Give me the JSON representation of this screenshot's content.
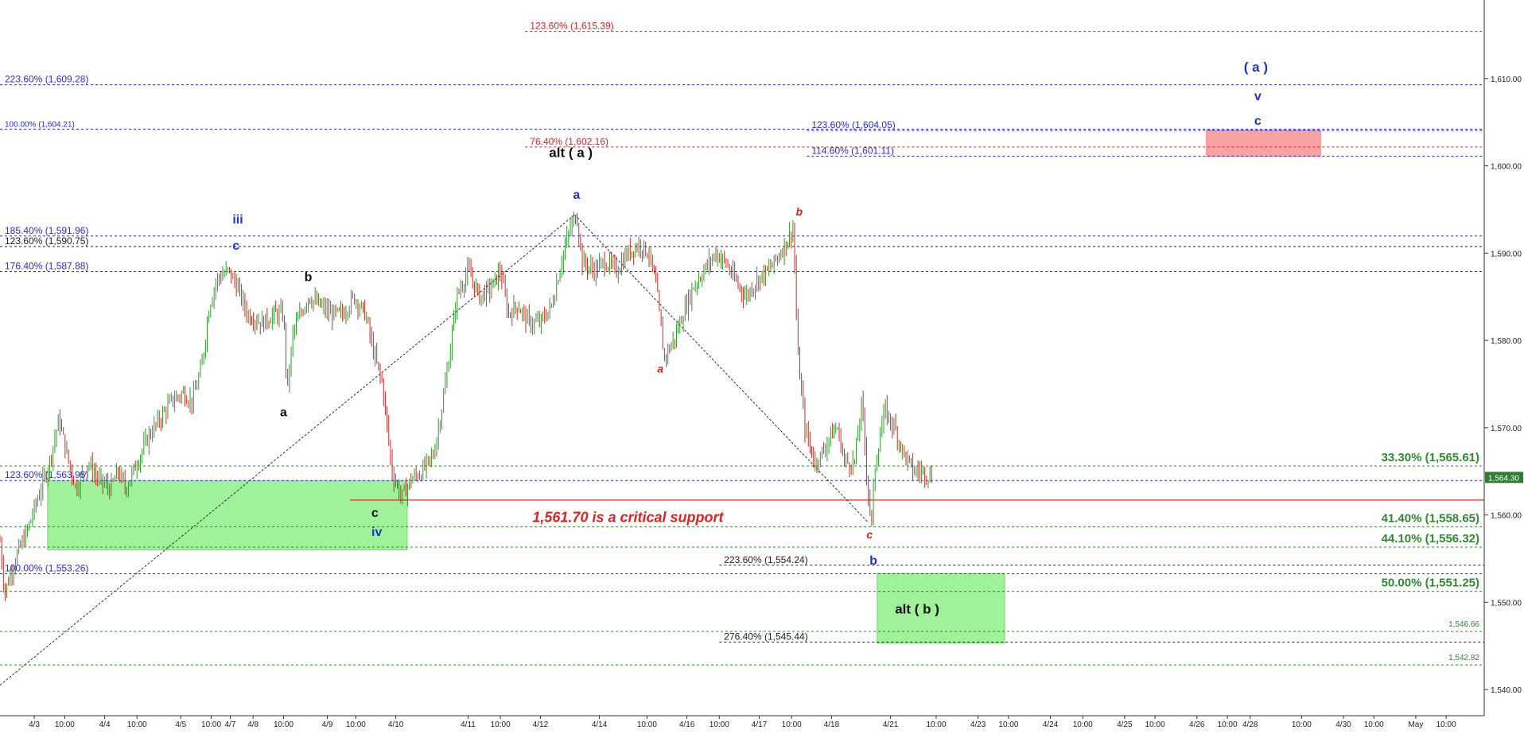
{
  "chart_data": {
    "type": "line",
    "subtype": "candlestick-elliott-wave",
    "y_axis": {
      "side": "right",
      "ylim": [
        1537,
        1619
      ],
      "ticks": [
        "1,540.00",
        "1,550.00",
        "1,560.00",
        "1,570.00",
        "1,580.00",
        "1,590.00",
        "1,600.00",
        "1,610.00"
      ],
      "tick_values": [
        1540,
        1550,
        1560,
        1570,
        1580,
        1590,
        1600,
        1610
      ],
      "last_price": "1,564.30",
      "last_price_value": 1564.3
    },
    "x_axis": {
      "slot_count": 39,
      "ticks": [
        {
          "label": "4/3",
          "slot": 0.9
        },
        {
          "label": "10:00",
          "slot": 1.7
        },
        {
          "label": "4/4",
          "slot": 2.75
        },
        {
          "label": "10:00",
          "slot": 3.6
        },
        {
          "label": "4/5",
          "slot": 4.75
        },
        {
          "label": "10:00",
          "slot": 5.55
        },
        {
          "label": "4/7",
          "slot": 6.05
        },
        {
          "label": "4/8",
          "slot": 6.65
        },
        {
          "label": "10:00",
          "slot": 7.45
        },
        {
          "label": "4/9",
          "slot": 8.6
        },
        {
          "label": "10:00",
          "slot": 9.35
        },
        {
          "label": "4/10",
          "slot": 10.4
        },
        {
          "label": "4/11",
          "slot": 12.3
        },
        {
          "label": "10:00",
          "slot": 13.15
        },
        {
          "label": "4/12",
          "slot": 14.2
        },
        {
          "label": "4/14",
          "slot": 15.75
        },
        {
          "label": "10:00",
          "slot": 17.0
        },
        {
          "label": "4/16",
          "slot": 18.05
        },
        {
          "label": "10:00",
          "slot": 18.9
        },
        {
          "label": "4/17",
          "slot": 19.95
        },
        {
          "label": "10:00",
          "slot": 20.8
        },
        {
          "label": "4/18",
          "slot": 21.85
        },
        {
          "label": "4/21",
          "slot": 23.4
        },
        {
          "label": "10:00",
          "slot": 24.6
        },
        {
          "label": "4/23",
          "slot": 25.7
        },
        {
          "label": "10:00",
          "slot": 26.5
        },
        {
          "label": "4/24",
          "slot": 27.6
        },
        {
          "label": "10:00",
          "slot": 28.45
        },
        {
          "label": "4/25",
          "slot": 29.55
        },
        {
          "label": "10:00",
          "slot": 30.35
        },
        {
          "label": "4/26",
          "slot": 31.45
        },
        {
          "label": "10:00",
          "slot": 32.25
        },
        {
          "label": "4/28",
          "slot": 32.85
        },
        {
          "label": "10:00",
          "slot": 34.2
        },
        {
          "label": "4/30",
          "slot": 35.3
        },
        {
          "label": "10:00",
          "slot": 36.1
        },
        {
          "label": "May",
          "slot": 37.2
        },
        {
          "label": "10:00",
          "slot": 38.0
        }
      ]
    },
    "price_path": [
      [
        0,
        1557
      ],
      [
        0.12,
        1551
      ],
      [
        0.4,
        1555
      ],
      [
        0.7,
        1558
      ],
      [
        1.0,
        1562
      ],
      [
        1.3,
        1566
      ],
      [
        1.55,
        1571
      ],
      [
        1.75,
        1567
      ],
      [
        2.0,
        1563
      ],
      [
        2.3,
        1566
      ],
      [
        2.6,
        1564
      ],
      [
        2.9,
        1563
      ],
      [
        3.1,
        1565
      ],
      [
        3.3,
        1563
      ],
      [
        3.6,
        1566
      ],
      [
        3.9,
        1569
      ],
      [
        4.2,
        1571
      ],
      [
        4.5,
        1573
      ],
      [
        4.8,
        1574
      ],
      [
        5.05,
        1573
      ],
      [
        5.3,
        1577
      ],
      [
        5.5,
        1584
      ],
      [
        5.7,
        1587
      ],
      [
        6.0,
        1588
      ],
      [
        6.25,
        1586
      ],
      [
        6.5,
        1583
      ],
      [
        6.9,
        1582
      ],
      [
        7.2,
        1583
      ],
      [
        7.45,
        1583
      ],
      [
        7.55,
        1574
      ],
      [
        7.7,
        1581
      ],
      [
        7.9,
        1583
      ],
      [
        8.1,
        1585
      ],
      [
        8.4,
        1584
      ],
      [
        8.7,
        1583
      ],
      [
        9.0,
        1583
      ],
      [
        9.3,
        1585
      ],
      [
        9.6,
        1583
      ],
      [
        9.85,
        1578
      ],
      [
        10.05,
        1575
      ],
      [
        10.3,
        1565
      ],
      [
        10.55,
        1562
      ],
      [
        10.8,
        1564
      ],
      [
        11.1,
        1565
      ],
      [
        11.4,
        1567
      ],
      [
        11.6,
        1572
      ],
      [
        11.8,
        1578
      ],
      [
        12.0,
        1585
      ],
      [
        12.3,
        1588
      ],
      [
        12.6,
        1585
      ],
      [
        12.9,
        1586
      ],
      [
        13.15,
        1588
      ],
      [
        13.35,
        1583
      ],
      [
        13.6,
        1584
      ],
      [
        13.9,
        1582
      ],
      [
        14.2,
        1582
      ],
      [
        14.5,
        1584
      ],
      [
        14.8,
        1590
      ],
      [
        15.0,
        1593
      ],
      [
        15.15,
        1594.5
      ],
      [
        15.3,
        1589
      ],
      [
        15.6,
        1588
      ],
      [
        15.9,
        1589
      ],
      [
        16.2,
        1588
      ],
      [
        16.5,
        1590
      ],
      [
        16.8,
        1591
      ],
      [
        17.05,
        1590
      ],
      [
        17.25,
        1586
      ],
      [
        17.45,
        1578
      ],
      [
        17.7,
        1580
      ],
      [
        17.95,
        1583
      ],
      [
        18.2,
        1586
      ],
      [
        18.5,
        1588
      ],
      [
        18.8,
        1590
      ],
      [
        19.05,
        1589
      ],
      [
        19.3,
        1587
      ],
      [
        19.6,
        1585
      ],
      [
        19.9,
        1587
      ],
      [
        20.2,
        1588
      ],
      [
        20.5,
        1590
      ],
      [
        20.75,
        1592
      ],
      [
        20.85,
        1593
      ],
      [
        20.95,
        1579
      ],
      [
        21.15,
        1570
      ],
      [
        21.4,
        1566
      ],
      [
        21.6,
        1567
      ],
      [
        21.8,
        1569
      ],
      [
        22.0,
        1570
      ],
      [
        22.2,
        1566
      ],
      [
        22.45,
        1566
      ],
      [
        22.65,
        1573
      ],
      [
        22.8,
        1563
      ],
      [
        22.9,
        1559
      ],
      [
        23.0,
        1566
      ],
      [
        23.25,
        1572
      ],
      [
        23.5,
        1570
      ],
      [
        23.75,
        1567
      ],
      [
        24.0,
        1565
      ],
      [
        24.25,
        1565
      ],
      [
        24.5,
        1564.3
      ]
    ],
    "levels": [
      {
        "label": "123.60% (1,615.39)",
        "value": 1615.39,
        "color": "#dd2222",
        "line": "dotted",
        "from_slot": 13.8,
        "label_pos": "start"
      },
      {
        "label": "223.60% (1,609.28)",
        "value": 1609.28,
        "color": "#2b2bd6",
        "line": "dotted",
        "from_slot": 0,
        "label_pos": "start"
      },
      {
        "label": "100.00% (1,604.21)",
        "value": 1604.21,
        "color": "#2b2bd6",
        "line": "dotted",
        "from_slot": 0,
        "label_pos": "start"
      },
      {
        "label": "123.60% (1,604.05)",
        "value": 1604.05,
        "color": "#2b2bd6",
        "line": "dotted",
        "from_slot": 21.2,
        "label_pos": "start"
      },
      {
        "label": "76.40% (1,602.16)",
        "value": 1602.16,
        "color": "#dd2222",
        "line": "dotted",
        "from_slot": 13.8,
        "label_pos": "start"
      },
      {
        "label": "114.60% (1,601.11)",
        "value": 1601.11,
        "color": "#2b2bd6",
        "line": "dotted",
        "from_slot": 21.2,
        "label_pos": "start"
      },
      {
        "label": "185.40% (1,591.96)",
        "value": 1591.96,
        "color": "#2b2bd6",
        "line": "dotted",
        "from_slot": 0,
        "label_pos": "start"
      },
      {
        "label": "123.60% (1,590.75)",
        "value": 1590.75,
        "color": "#222222",
        "line": "dotted",
        "from_slot": 0,
        "label_pos": "start"
      },
      {
        "label": "176.40% (1,587.88)",
        "value": 1587.88,
        "color": "#2b2bd6",
        "line": "dotted",
        "from_slot": 0,
        "label_pos": "start"
      },
      {
        "label": "33.30% (1,565.61)",
        "value": 1565.61,
        "color": "#2e8b2e",
        "line": "dotted",
        "from_slot": 0,
        "label_pos": "end"
      },
      {
        "label": "123.60% (1,563.95)",
        "value": 1563.95,
        "color": "#2b2bd6",
        "line": "dotted",
        "from_slot": 0,
        "label_pos": "start"
      },
      {
        "label": "",
        "value": 1561.7,
        "color": "#dd2222",
        "line": "solid",
        "from_slot": 9.2,
        "label_pos": "none"
      },
      {
        "label": "41.40% (1,558.65)",
        "value": 1558.65,
        "color": "#2e8b2e",
        "line": "dotted",
        "from_slot": 0,
        "label_pos": "end"
      },
      {
        "label": "44.10% (1,556.32)",
        "value": 1556.32,
        "color": "#2e8b2e",
        "line": "dotted",
        "from_slot": 0,
        "label_pos": "end"
      },
      {
        "label": "223.60% (1,554.24)",
        "value": 1554.24,
        "color": "#222222",
        "line": "dotted",
        "from_slot": 18.9,
        "label_pos": "start"
      },
      {
        "label": "100.00% (1,553.26)",
        "value": 1553.26,
        "color": "#2b2bd6",
        "line": "dotted",
        "from_slot": 0,
        "label_pos": "start"
      },
      {
        "label": "50.00% (1,551.25)",
        "value": 1551.25,
        "color": "#2e8b2e",
        "line": "dotted",
        "from_slot": 0,
        "label_pos": "end"
      },
      {
        "label": "1,546.66",
        "value": 1546.66,
        "color": "#2e8b2e",
        "line": "dotted",
        "from_slot": 0,
        "label_pos": "end"
      },
      {
        "label": "276.40% (1,545.44)",
        "value": 1545.44,
        "color": "#222222",
        "line": "dotted",
        "from_slot": 18.9,
        "label_pos": "start"
      },
      {
        "label": "1,542.82",
        "value": 1542.82,
        "color": "#2e8b2e",
        "line": "dotted",
        "from_slot": 0,
        "label_pos": "end"
      }
    ],
    "zones": [
      {
        "x_from": 1.25,
        "x_to": 10.7,
        "y_low": 1556.0,
        "y_high": 1563.9,
        "color": "#9ff29a"
      },
      {
        "x_from": 23.05,
        "x_to": 26.4,
        "y_low": 1545.3,
        "y_high": 1553.3,
        "color": "#9ff29a"
      },
      {
        "x_from": 31.7,
        "x_to": 34.7,
        "y_low": 1601.1,
        "y_high": 1604.1,
        "color": "#f7a3a3"
      }
    ],
    "trendlines": [
      {
        "x1": 0,
        "y1": 1540.5,
        "x2": 15.1,
        "y2": 1594.4
      },
      {
        "x1": 15.1,
        "y1": 1594.4,
        "x2": 22.8,
        "y2": 1559.2
      }
    ],
    "annotations": [
      {
        "text": "iii",
        "x": 6.25,
        "y": 1593.4,
        "color": "#1f35c8",
        "size": 16,
        "bold": true
      },
      {
        "text": "c",
        "x": 6.2,
        "y": 1590.4,
        "color": "#1f35c8",
        "size": 16,
        "bold": true
      },
      {
        "text": "b",
        "x": 8.1,
        "y": 1586.8,
        "color": "#111111",
        "size": 16,
        "bold": true
      },
      {
        "text": "a",
        "x": 7.45,
        "y": 1571.3,
        "color": "#111111",
        "size": 16,
        "bold": true
      },
      {
        "text": "c",
        "x": 9.85,
        "y": 1559.8,
        "color": "#111111",
        "size": 16,
        "bold": true
      },
      {
        "text": "iv",
        "x": 9.9,
        "y": 1557.6,
        "color": "#1f35c8",
        "size": 16,
        "bold": true
      },
      {
        "text": "a",
        "x": 15.15,
        "y": 1596.2,
        "color": "#1f35c8",
        "size": 16,
        "bold": true
      },
      {
        "text": "alt ( a )",
        "x": 15.0,
        "y": 1601.0,
        "color": "#111111",
        "size": 17,
        "bold": true
      },
      {
        "text": "a",
        "x": 17.35,
        "y": 1576.3,
        "color": "#dd2222",
        "size": 14,
        "bold": true,
        "italic": true
      },
      {
        "text": "b",
        "x": 21.0,
        "y": 1594.3,
        "color": "#dd2222",
        "size": 14,
        "bold": true,
        "italic": true
      },
      {
        "text": "c",
        "x": 22.85,
        "y": 1557.3,
        "color": "#dd2222",
        "size": 14,
        "bold": true,
        "italic": true
      },
      {
        "text": "b",
        "x": 22.95,
        "y": 1554.3,
        "color": "#1f35c8",
        "size": 16,
        "bold": true
      },
      {
        "text": "alt ( b )",
        "x": 24.1,
        "y": 1548.7,
        "color": "#111111",
        "size": 17,
        "bold": true
      },
      {
        "text": "( a )",
        "x": 33.0,
        "y": 1610.8,
        "color": "#1f35c8",
        "size": 17,
        "bold": true
      },
      {
        "text": "v",
        "x": 33.05,
        "y": 1607.5,
        "color": "#1f35c8",
        "size": 16,
        "bold": true
      },
      {
        "text": "c",
        "x": 33.05,
        "y": 1604.7,
        "color": "#1f35c8",
        "size": 16,
        "bold": true
      },
      {
        "text": "1,561.70 is a critical support",
        "x": 16.5,
        "y": 1559.2,
        "color": "#dd2222",
        "size": 18,
        "bold": true,
        "italic": true
      }
    ],
    "grid": false,
    "legend": "none",
    "colors": {
      "up": "#2f9a2f",
      "down": "#cc2a2a",
      "axis": "#222222"
    }
  }
}
